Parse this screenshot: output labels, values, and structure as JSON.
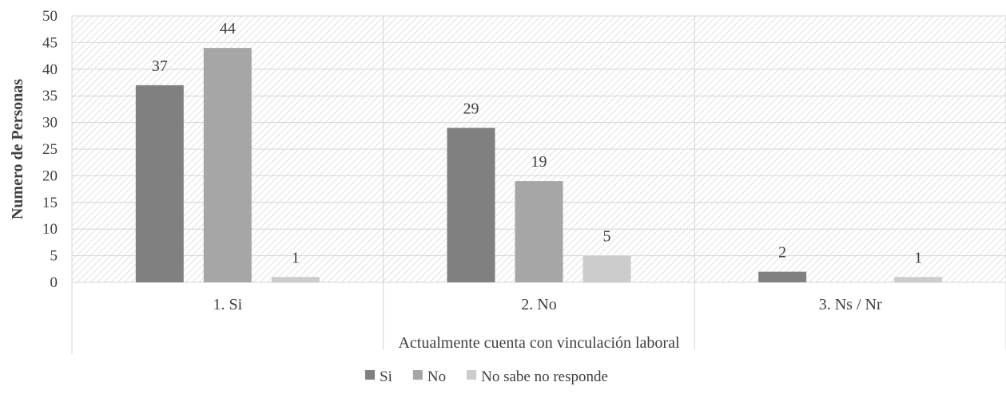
{
  "chart_data": {
    "type": "bar",
    "categories": [
      "1. Si",
      "2. No",
      "3. Ns / Nr"
    ],
    "series": [
      {
        "name": "Si",
        "values": [
          37,
          29,
          2
        ],
        "color": "#808080"
      },
      {
        "name": "No",
        "values": [
          44,
          19,
          0
        ],
        "color": "#a6a6a6"
      },
      {
        "name": "No sabe no responde",
        "values": [
          1,
          5,
          1
        ],
        "color": "#cccccc"
      }
    ],
    "data_labels": [
      [
        "37",
        "29",
        "2"
      ],
      [
        "44",
        "19",
        ""
      ],
      [
        "1",
        "5",
        "1"
      ]
    ],
    "xlabel": "Actualmente cuenta con vinculación laboral",
    "ylabel": "Numero de Personas",
    "ylim": [
      0,
      50
    ],
    "yticks": [
      0,
      5,
      10,
      15,
      20,
      25,
      30,
      35,
      40,
      45,
      50
    ],
    "grid": true,
    "background_pattern": "diagonal-hatch",
    "legend_position": "bottom"
  }
}
